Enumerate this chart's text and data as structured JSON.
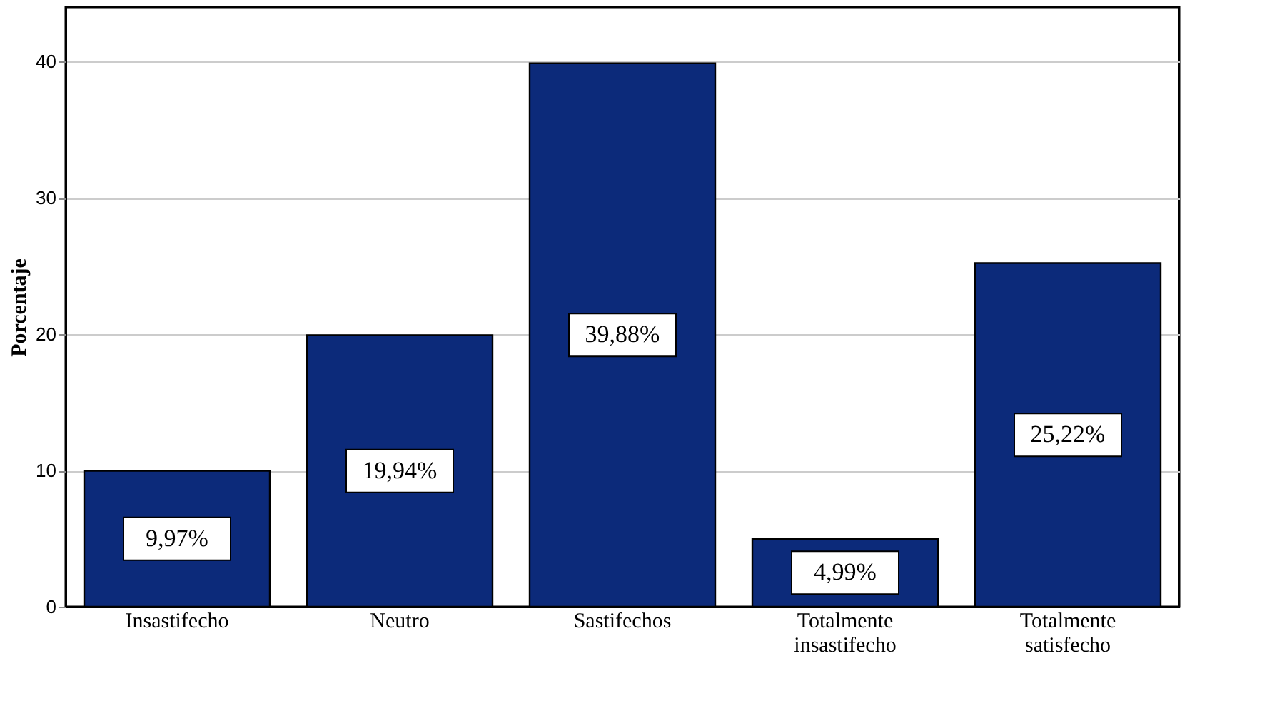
{
  "chart_data": {
    "type": "bar",
    "ylabel": "Porcentaje",
    "categories": [
      "Insastifecho",
      "Neutro",
      "Sastifechos",
      "Totalmente insastifecho",
      "Totalmente satisfecho"
    ],
    "values": [
      9.97,
      19.94,
      39.88,
      4.99,
      25.22
    ],
    "value_labels": [
      "9,97%",
      "19,94%",
      "39,88%",
      "4,99%",
      "25,22%"
    ],
    "color": "#0c2a7a",
    "ylim": [
      0,
      44
    ],
    "yticks": [
      0,
      10,
      20,
      30,
      40
    ],
    "grid": "y"
  }
}
